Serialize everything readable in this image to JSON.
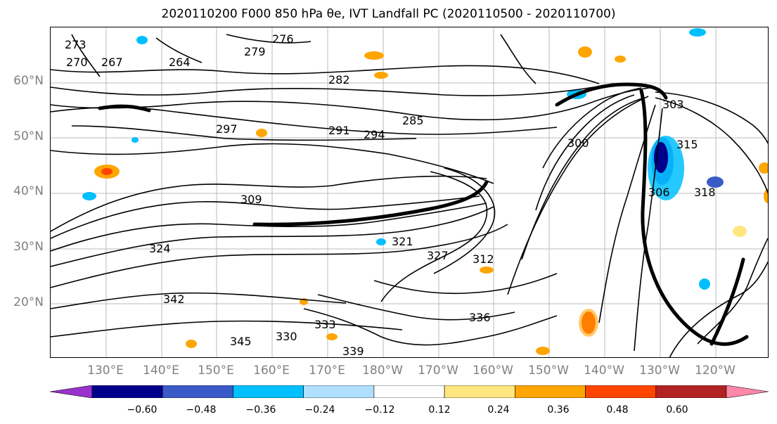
{
  "title": "2020110200 F000 850 hPa θe, IVT Landfall PC (2020110500 - 2020110700)",
  "lat_labels": [
    "60°N",
    "50°N",
    "40°N",
    "30°N",
    "20°N"
  ],
  "lon_labels": [
    "130°E",
    "140°E",
    "150°E",
    "160°E",
    "170°E",
    "180°W",
    "170°W",
    "160°W",
    "150°W",
    "140°W",
    "130°W",
    "120°W"
  ],
  "colorbar": {
    "colors": [
      "#9932cc",
      "#00008b",
      "#3a5bc7",
      "#00bfff",
      "#b0e0ff",
      "#ffffff",
      "#ffe680",
      "#ffa500",
      "#ff4500",
      "#b22222",
      "#ff88aa"
    ],
    "ticks": [
      "−0.60",
      "−0.48",
      "−0.36",
      "−0.24",
      "−0.12",
      "0.12",
      "0.24",
      "0.36",
      "0.48",
      "0.60"
    ]
  },
  "contour_labels": [
    "273",
    "270",
    "267",
    "264",
    "276",
    "279",
    "282",
    "285",
    "291",
    "294",
    "297",
    "300",
    "303",
    "306",
    "309",
    "312",
    "315",
    "318",
    "321",
    "324",
    "327",
    "330",
    "333",
    "336",
    "339",
    "342",
    "345"
  ]
}
